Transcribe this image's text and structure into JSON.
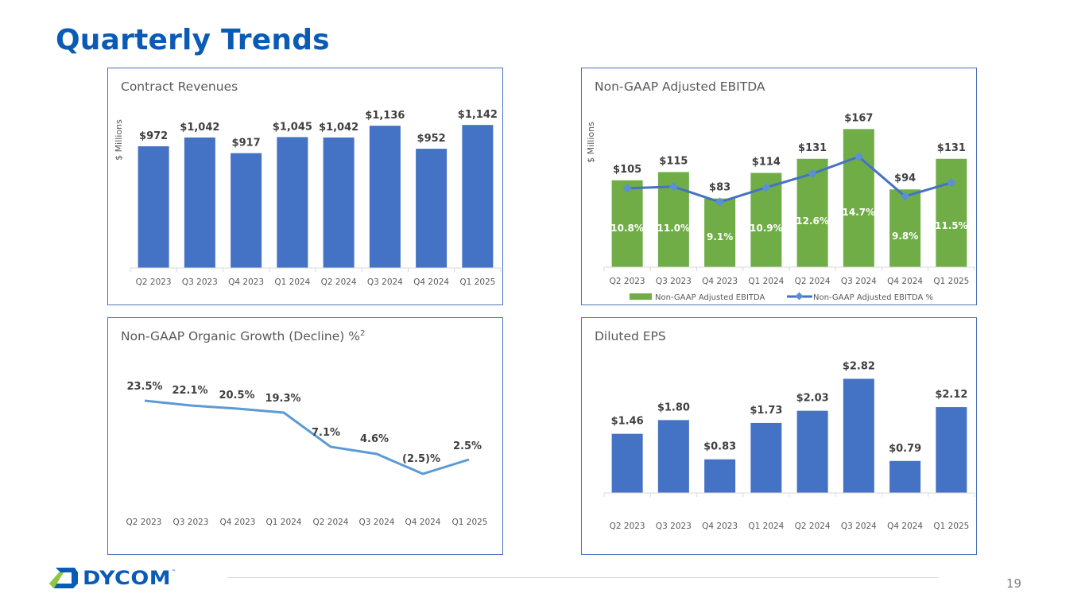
{
  "page": {
    "title": "Quarterly Trends",
    "page_number": "19",
    "logo_text": "DYCOM",
    "logo_mark": "™"
  },
  "colors": {
    "title_blue": "#0a5bb5",
    "bar_blue": "#4472c4",
    "bar_green": "#70ad47",
    "line_blue": "#4472c4",
    "growth_line": "#5b9bd5",
    "logo_green": "#8dc63f",
    "panel_border": "#4a72b8"
  },
  "chart_data": [
    {
      "id": "contract-revenues",
      "type": "bar",
      "title": "Contract Revenues",
      "ylabel": "$ Millions",
      "xlabel": "",
      "categories": [
        "Q2 2023",
        "Q3 2023",
        "Q4 2023",
        "Q1 2024",
        "Q2 2024",
        "Q3 2024",
        "Q4 2024",
        "Q1 2025"
      ],
      "values": [
        972,
        1042,
        917,
        1045,
        1042,
        1136,
        952,
        1142
      ],
      "labels": [
        "$972",
        "$1,042",
        "$917",
        "$1,045",
        "$1,042",
        "$1,136",
        "$952",
        "$1,142"
      ],
      "ylim": [
        0,
        1340
      ],
      "grid": false,
      "legend": "none"
    },
    {
      "id": "adjusted-ebitda",
      "type": "bar",
      "title": "Non-GAAP Adjusted EBITDA",
      "ylabel": "$ Millions",
      "xlabel": "",
      "categories": [
        "Q2 2023",
        "Q3 2023",
        "Q4 2023",
        "Q1 2024",
        "Q2 2024",
        "Q3 2024",
        "Q4 2024",
        "Q1 2025"
      ],
      "series": [
        {
          "name": "Non-GAAP Adjusted EBITDA",
          "type": "bar",
          "values": [
            105,
            115,
            83,
            114,
            131,
            167,
            94,
            131
          ],
          "labels": [
            "$105",
            "$115",
            "$83",
            "$114",
            "$131",
            "$167",
            "$94",
            "$131"
          ]
        },
        {
          "name": "Non-GAAP Adjusted EBITDA %",
          "type": "line",
          "values": [
            10.8,
            11.0,
            9.1,
            10.9,
            12.6,
            14.7,
            9.8,
            11.5
          ],
          "labels": [
            "10.8%",
            "11.0%",
            "9.1%",
            "10.9%",
            "12.6%",
            "14.7%",
            "9.8%",
            "11.5%"
          ]
        }
      ],
      "ylim": [
        0,
        200
      ],
      "grid": false,
      "legend": "bottom"
    },
    {
      "id": "organic-growth",
      "type": "line",
      "title": "Non-GAAP Organic Growth (Decline)  %",
      "title_superscript": "2",
      "xlabel": "",
      "ylabel": "",
      "categories": [
        "Q2 2023",
        "Q3 2023",
        "Q4 2023",
        "Q1 2024",
        "Q2 2024",
        "Q3 2024",
        "Q4 2024",
        "Q1 2025"
      ],
      "values": [
        23.5,
        22.1,
        20.5,
        19.3,
        7.1,
        4.6,
        -2.5,
        2.5
      ],
      "labels": [
        "23.5%",
        "22.1%",
        "20.5%",
        "19.3%",
        "7.1%",
        "4.6%",
        "(2.5)%",
        "2.5%"
      ],
      "ylim": [
        -12,
        36
      ],
      "grid": false,
      "legend": "none"
    },
    {
      "id": "diluted-eps",
      "type": "bar",
      "title": "Diluted EPS",
      "xlabel": "",
      "ylabel": "",
      "categories": [
        "Q2 2023",
        "Q3 2023",
        "Q4 2023",
        "Q1 2024",
        "Q2 2024",
        "Q3 2024",
        "Q4 2024",
        "Q1 2025"
      ],
      "values": [
        1.46,
        1.8,
        0.83,
        1.73,
        2.03,
        2.82,
        0.79,
        2.12
      ],
      "labels": [
        "$1.46",
        "$1.80",
        "$0.83",
        "$1.73",
        "$2.03",
        "$2.82",
        "$0.79",
        "$2.12"
      ],
      "ylim": [
        0,
        3.3
      ],
      "grid": false,
      "legend": "none"
    }
  ]
}
